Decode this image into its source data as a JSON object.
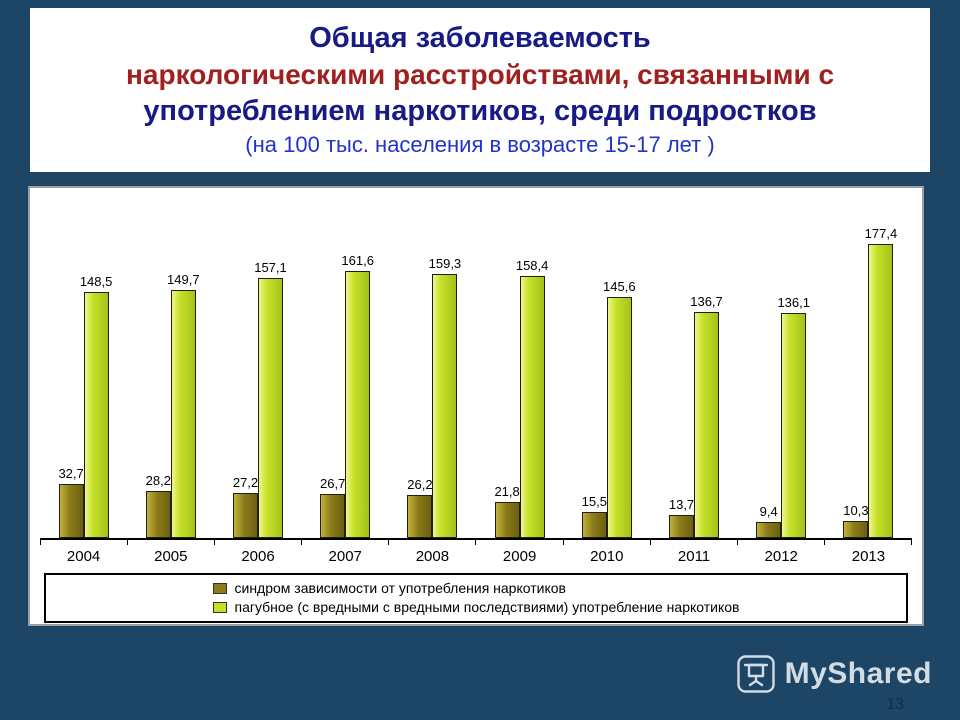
{
  "slide": {
    "title_line1": "Общая заболеваемость",
    "title_line2": "наркологическими расстройствами, связанными с",
    "title_line3": "употреблением наркотиков, среди подростков",
    "subtitle": "(на 100 тыс. населения в возрасте 15-17 лет )",
    "page_number": "13"
  },
  "watermark": {
    "icon": "projector-screen-icon",
    "text": "MyShared"
  },
  "colors": {
    "background": "#1c4566",
    "title_navy": "#181a86",
    "title_red": "#a02020",
    "subtitle_blue": "#2233cc",
    "series1": "#8a7a1a",
    "series2": "#c6e028"
  },
  "chart_data": {
    "type": "bar",
    "title": "Общая заболеваемость наркологическими расстройствами, связанными с употреблением наркотиков, среди подростков (на 100 тыс. населения в возрасте 15-17 лет )",
    "categories": [
      "2004",
      "2005",
      "2006",
      "2007",
      "2008",
      "2009",
      "2010",
      "2011",
      "2012",
      "2013"
    ],
    "series": [
      {
        "name": "синдром зависимости от употребления наркотиков",
        "color": "#8a7a1a",
        "values": [
          32.7,
          28.2,
          27.2,
          26.7,
          26.2,
          21.8,
          15.5,
          13.7,
          9.4,
          10.3
        ],
        "labels": [
          "32,7",
          "28,2",
          "27,2",
          "26,7",
          "26,2",
          "21,8",
          "15,5",
          "13,7",
          "9,4",
          "10,3"
        ]
      },
      {
        "name": "пагубное (с вредными с вредными последствиями) употребление наркотиков",
        "color": "#c6e028",
        "values": [
          148.5,
          149.7,
          157.1,
          161.6,
          159.3,
          158.4,
          145.6,
          136.7,
          136.1,
          177.4
        ],
        "labels": [
          "148,5",
          "149,7",
          "157,1",
          "161,6",
          "159,3",
          "158,4",
          "145,6",
          "136,7",
          "136,1",
          "177,4"
        ]
      }
    ],
    "xlabel": "",
    "ylabel": "",
    "ylim": [
      0,
      180
    ],
    "grid": false,
    "legend_position": "bottom"
  }
}
